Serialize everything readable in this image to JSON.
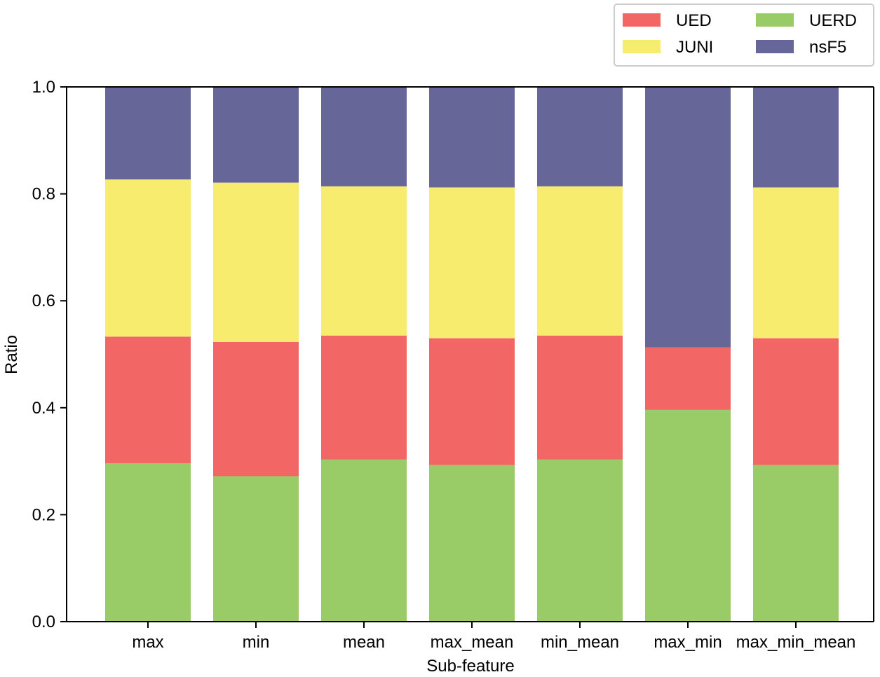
{
  "chart_data": {
    "type": "bar",
    "stacked": true,
    "xlabel": "Sub-feature",
    "ylabel": "Ratio",
    "ylim": [
      0,
      1.0
    ],
    "yticks": [
      "0.0",
      "0.2",
      "0.4",
      "0.6",
      "0.8",
      "1.0"
    ],
    "categories": [
      "max",
      "min",
      "mean",
      "max_mean",
      "min_mean",
      "max_min",
      "max_min_mean"
    ],
    "series": [
      {
        "name": "UERD",
        "color": "#99cc66",
        "values": [
          0.296,
          0.272,
          0.303,
          0.293,
          0.303,
          0.396,
          0.293
        ]
      },
      {
        "name": "UED",
        "color": "#f26666",
        "values": [
          0.237,
          0.251,
          0.232,
          0.237,
          0.232,
          0.117,
          0.237
        ]
      },
      {
        "name": "JUNI",
        "color": "#f7ec6e",
        "values": [
          0.294,
          0.298,
          0.279,
          0.282,
          0.279,
          0.0,
          0.282
        ]
      },
      {
        "name": "nsF5",
        "color": "#666699",
        "values": [
          0.173,
          0.179,
          0.186,
          0.188,
          0.186,
          0.487,
          0.188
        ]
      }
    ],
    "legend": {
      "position": "top-right",
      "order": [
        "UED",
        "UERD",
        "JUNI",
        "nsF5"
      ]
    },
    "grid": false
  }
}
